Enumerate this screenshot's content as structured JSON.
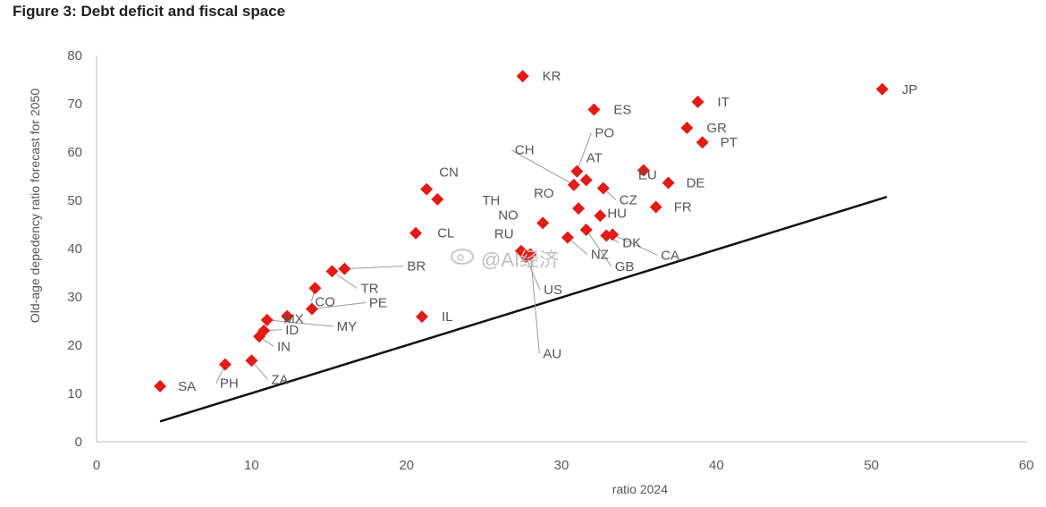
{
  "figure_title": "Figure 3: Debt deficit and fiscal space",
  "watermark": "@AI经济",
  "colors": {
    "points": "#e11b17",
    "line": "#111111",
    "text": "#555555"
  },
  "chart_data": {
    "type": "scatter",
    "title": "Figure 3: Debt deficit and fiscal space",
    "xlabel": "ratio 2024",
    "ylabel": "Old-age depedency ratio forecast for 2050",
    "xlim": [
      0,
      60
    ],
    "ylim": [
      0,
      80
    ],
    "xticks": [
      0,
      10,
      20,
      30,
      40,
      50,
      60
    ],
    "yticks": [
      0,
      10,
      20,
      30,
      40,
      50,
      60,
      70,
      80
    ],
    "grid": false,
    "points": [
      {
        "label": "SA",
        "x": 4.1,
        "y": 11.5
      },
      {
        "label": "PH",
        "x": 8.3,
        "y": 16.0
      },
      {
        "label": "ZA",
        "x": 10.0,
        "y": 16.8
      },
      {
        "label": "IN",
        "x": 10.5,
        "y": 21.8
      },
      {
        "label": "ID",
        "x": 10.8,
        "y": 23.0
      },
      {
        "label": "MY",
        "x": 11.0,
        "y": 25.2
      },
      {
        "label": "MX",
        "x": 12.3,
        "y": 26.0
      },
      {
        "label": "PE",
        "x": 13.9,
        "y": 27.5
      },
      {
        "label": "CO",
        "x": 14.1,
        "y": 31.8
      },
      {
        "label": "TR",
        "x": 15.2,
        "y": 35.3
      },
      {
        "label": "BR",
        "x": 16.0,
        "y": 35.8
      },
      {
        "label": "CL",
        "x": 20.6,
        "y": 43.2
      },
      {
        "label": "IL",
        "x": 21.0,
        "y": 25.9
      },
      {
        "label": "CN",
        "x": 21.3,
        "y": 52.3
      },
      {
        "label": "TH",
        "x": 22.0,
        "y": 50.2
      },
      {
        "label": "KR",
        "x": 27.5,
        "y": 75.7
      },
      {
        "label": "RU",
        "x": 27.4,
        "y": 39.5
      },
      {
        "label": "US",
        "x": 27.7,
        "y": 38.3
      },
      {
        "label": "AU",
        "x": 28.0,
        "y": 38.8
      },
      {
        "label": "NO",
        "x": 28.8,
        "y": 45.3
      },
      {
        "label": "NZ",
        "x": 30.4,
        "y": 42.3
      },
      {
        "label": "CH",
        "x": 30.8,
        "y": 53.2
      },
      {
        "label": "PO",
        "x": 31.0,
        "y": 56.0
      },
      {
        "label": "RO",
        "x": 31.1,
        "y": 48.3
      },
      {
        "label": "AT",
        "x": 31.6,
        "y": 54.2
      },
      {
        "label": "GB",
        "x": 31.6,
        "y": 43.9
      },
      {
        "label": "ES",
        "x": 32.1,
        "y": 68.8
      },
      {
        "label": "HU",
        "x": 32.5,
        "y": 46.8
      },
      {
        "label": "CZ",
        "x": 32.7,
        "y": 52.5
      },
      {
        "label": "DK",
        "x": 32.9,
        "y": 42.7
      },
      {
        "label": "CA",
        "x": 33.3,
        "y": 42.9
      },
      {
        "label": "EU",
        "x": 35.3,
        "y": 56.2
      },
      {
        "label": "FR",
        "x": 36.1,
        "y": 48.6
      },
      {
        "label": "DE",
        "x": 36.9,
        "y": 53.6
      },
      {
        "label": "GR",
        "x": 38.1,
        "y": 65.0
      },
      {
        "label": "IT",
        "x": 38.8,
        "y": 70.4
      },
      {
        "label": "PT",
        "x": 39.1,
        "y": 62.0
      },
      {
        "label": "JP",
        "x": 50.7,
        "y": 73.0
      }
    ],
    "reference_line": {
      "x": [
        4.1,
        51.0
      ],
      "y": [
        4.2,
        50.7
      ]
    }
  }
}
